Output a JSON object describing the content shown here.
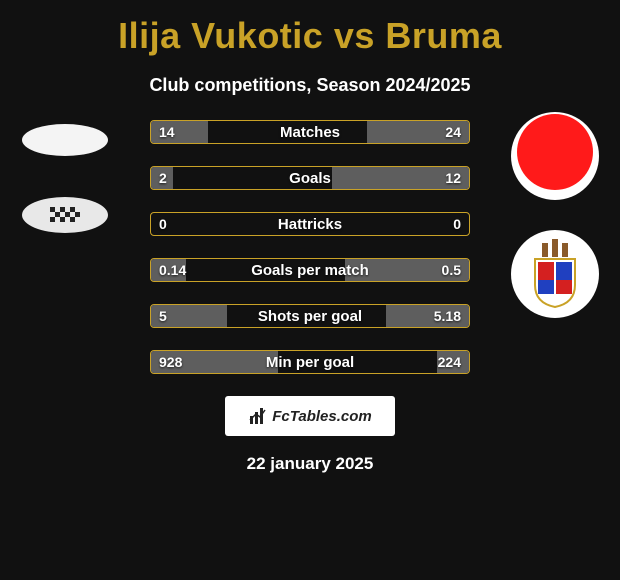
{
  "title": "Ilija Vukotic vs Bruma",
  "subtitle": "Club competitions, Season 2024/2025",
  "date": "22 january 2025",
  "watermark": "FcTables.com",
  "colors": {
    "background": "#111111",
    "accent": "#c9a227",
    "bar_fill": "#5e5e5e",
    "text": "#ffffff"
  },
  "stats": [
    {
      "label": "Matches",
      "left_val": "14",
      "right_val": "24",
      "left_pct": 18,
      "right_pct": 32
    },
    {
      "label": "Goals",
      "left_val": "2",
      "right_val": "12",
      "left_pct": 7,
      "right_pct": 43
    },
    {
      "label": "Hattricks",
      "left_val": "0",
      "right_val": "0",
      "left_pct": 0,
      "right_pct": 0
    },
    {
      "label": "Goals per match",
      "left_val": "0.14",
      "right_val": "0.5",
      "left_pct": 11,
      "right_pct": 39
    },
    {
      "label": "Shots per goal",
      "left_val": "5",
      "right_val": "5.18",
      "left_pct": 24,
      "right_pct": 26
    },
    {
      "label": "Min per goal",
      "left_val": "928",
      "right_val": "224",
      "left_pct": 40,
      "right_pct": 10
    }
  ],
  "left_player": {
    "badges": [
      {
        "type": "ellipse-white"
      },
      {
        "type": "boavista"
      }
    ]
  },
  "right_player": {
    "badges": [
      {
        "type": "circle-red"
      },
      {
        "type": "braga"
      }
    ]
  }
}
